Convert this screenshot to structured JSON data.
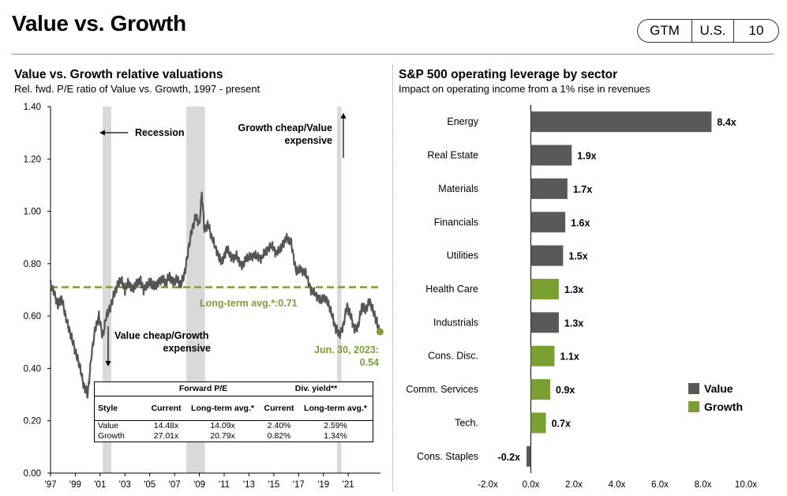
{
  "header": {
    "title": "Value vs. Growth",
    "tags": [
      "GTM",
      "U.S.",
      "10"
    ]
  },
  "left": {
    "title": "Value vs. Growth relative valuations",
    "subtitle": "Rel. fwd. P/E ratio of Value vs. Growth, 1997 - present",
    "annotations": {
      "recession": "Recession",
      "growth_cheap_1": "Growth cheap/Value",
      "growth_cheap_2": "expensive",
      "value_cheap_1": "Value cheap/Growth",
      "value_cheap_2": "expensive",
      "avg_label": "Long-term avg.*:0.71",
      "current_1": "Jun. 30, 2023:",
      "current_2": "0.54"
    },
    "table": {
      "group1": "Forward P/E",
      "group2": "Div. yield**",
      "headers": [
        "Style",
        "Current",
        "Long-term avg.*",
        "Current",
        "Long-term avg.*"
      ],
      "rows": [
        [
          "Value",
          "14.48x",
          "14.09x",
          "2.40%",
          "2.59%"
        ],
        [
          "Growth",
          "27.01x",
          "20.79x",
          "0.82%",
          "1.34%"
        ]
      ]
    }
  },
  "right": {
    "title": "S&P 500 operating leverage by sector",
    "subtitle": "Impact on operating income from a 1% rise in revenues",
    "legend": [
      "Value",
      "Growth"
    ]
  },
  "colors": {
    "value": "#595959",
    "growth": "#7aa032",
    "line": "#555555",
    "recession": "#d9d9d9"
  },
  "chart_data": [
    {
      "type": "line",
      "title": "Value vs. Growth relative valuations",
      "ylim": [
        0,
        1.4
      ],
      "yticks": [
        "0.00",
        "0.20",
        "0.40",
        "0.60",
        "0.80",
        "1.00",
        "1.20",
        "1.40"
      ],
      "xticks": [
        "'97",
        "'99",
        "'01",
        "'03",
        "'05",
        "'07",
        "'09",
        "'11",
        "'13",
        "'15",
        "'17",
        "'19",
        "'21"
      ],
      "long_term_avg": 0.71,
      "current": {
        "date": "Jun. 30, 2023",
        "value": 0.54
      },
      "recessions": [
        [
          2001.2,
          2001.9
        ],
        [
          2007.95,
          2009.45
        ],
        [
          2020.1,
          2020.45
        ]
      ],
      "series": [
        {
          "x": [
            1997.0,
            1997.3,
            1997.6,
            1997.9,
            1998.2,
            1998.5,
            1998.8,
            1999.1,
            1999.4,
            1999.7,
            2000.0,
            2000.3,
            2000.6,
            2000.9,
            2001.2,
            2001.5,
            2001.8,
            2002.1,
            2002.4,
            2002.7,
            2003.0,
            2003.3,
            2003.6,
            2003.9,
            2004.2,
            2004.5,
            2004.8,
            2005.1,
            2005.4,
            2005.7,
            2006.0,
            2006.3,
            2006.6,
            2006.9,
            2007.2,
            2007.5,
            2007.8,
            2008.1,
            2008.4,
            2008.7,
            2009.0,
            2009.2,
            2009.4,
            2009.7,
            2010.0,
            2010.4,
            2010.8,
            2011.2,
            2011.6,
            2012.0,
            2012.4,
            2012.8,
            2013.2,
            2013.6,
            2014.0,
            2014.4,
            2014.8,
            2015.2,
            2015.6,
            2016.0,
            2016.4,
            2016.8,
            2017.2,
            2017.6,
            2018.0,
            2018.4,
            2018.8,
            2019.2,
            2019.6,
            2020.0,
            2020.3,
            2020.6,
            2020.9,
            2021.2,
            2021.5,
            2021.8,
            2022.1,
            2022.4,
            2022.7,
            2023.0,
            2023.3,
            2023.5
          ],
          "y": [
            0.72,
            0.69,
            0.64,
            0.67,
            0.6,
            0.55,
            0.5,
            0.45,
            0.4,
            0.33,
            0.3,
            0.45,
            0.55,
            0.6,
            0.52,
            0.6,
            0.63,
            0.68,
            0.72,
            0.74,
            0.7,
            0.73,
            0.7,
            0.72,
            0.74,
            0.7,
            0.72,
            0.73,
            0.71,
            0.73,
            0.74,
            0.73,
            0.75,
            0.73,
            0.74,
            0.72,
            0.76,
            0.85,
            0.93,
            0.98,
            0.95,
            1.07,
            0.93,
            0.95,
            0.9,
            0.85,
            0.8,
            0.86,
            0.82,
            0.83,
            0.79,
            0.82,
            0.83,
            0.83,
            0.82,
            0.85,
            0.87,
            0.84,
            0.86,
            0.9,
            0.88,
            0.77,
            0.78,
            0.76,
            0.7,
            0.68,
            0.66,
            0.67,
            0.62,
            0.55,
            0.53,
            0.56,
            0.64,
            0.6,
            0.55,
            0.56,
            0.64,
            0.62,
            0.66,
            0.62,
            0.58,
            0.54
          ]
        }
      ]
    },
    {
      "type": "bar",
      "title": "S&P 500 operating leverage by sector",
      "orientation": "horizontal",
      "categories": [
        "Energy",
        "Real Estate",
        "Materials",
        "Financials",
        "Utilities",
        "Health Care",
        "Industrials",
        "Cons. Disc.",
        "Comm. Services",
        "Tech.",
        "Cons. Staples"
      ],
      "values": [
        8.4,
        1.9,
        1.7,
        1.6,
        1.5,
        1.3,
        1.3,
        1.1,
        0.9,
        0.7,
        -0.2
      ],
      "labels": [
        "8.4x",
        "1.9x",
        "1.7x",
        "1.6x",
        "1.5x",
        "1.3x",
        "1.3x",
        "1.1x",
        "0.9x",
        "0.7x",
        "-0.2x"
      ],
      "style": [
        "Value",
        "Value",
        "Value",
        "Value",
        "Value",
        "Growth",
        "Value",
        "Growth",
        "Growth",
        "Growth",
        "Value"
      ],
      "xlim": [
        -2,
        10
      ],
      "xticks": [
        "-2.0x",
        "0.0x",
        "2.0x",
        "4.0x",
        "6.0x",
        "8.0x",
        "10.0x"
      ],
      "legend": "right"
    }
  ]
}
